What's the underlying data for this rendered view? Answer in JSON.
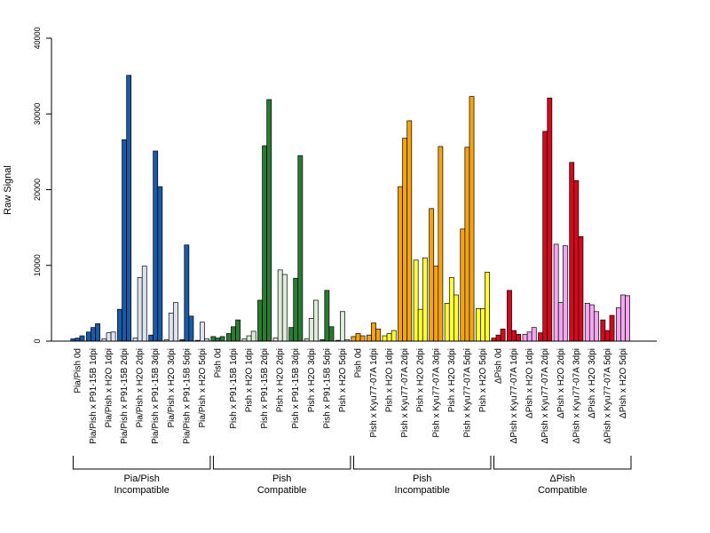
{
  "chart_data": {
    "type": "bar",
    "ylabel": "Raw Signal",
    "ylim": [
      0,
      40000
    ],
    "yticks": [
      0,
      10000,
      20000,
      30000,
      40000
    ],
    "grid": false,
    "categories": [
      "Pia/Pish 0d",
      "Pia/Pish x P91-15B 1dpi",
      "Pia/Pish x H2O 1dpi",
      "Pia/Pish x P91-15B 2dpi",
      "Pia/Pish x H2O 2dpi",
      "Pia/Pish x P91-15B 3dpi",
      "Pia/Pish x H2O 3dpi",
      "Pia/Pish x P91-15B 5dpi",
      "Pia/Pish x H2O 5dpi",
      "Pish 0d",
      "Pish x P91-15B 1dpi",
      "Pish x H2O 1dpi",
      "Pish x P91-15B 2dpi",
      "Pish x H2O 2dpi",
      "Pish x P91-15B 3dpi",
      "Pish x H2O 3dpi",
      "Pish x P91-15B 5dpi",
      "Pish x H2O 5dpi",
      "Pish 0d",
      "Pish x Kyu77-07A 1dpi",
      "Pish x H2O 1dpi",
      "Pish x Kyu77-07A 2dpi",
      "Pish x H2O 2dpi",
      "Pish x Kyu77-07A 3dpi",
      "Pish x H2O 3dpi",
      "Pish x Kyu77-07A 5dpi",
      "Pish x H2O 5dpi",
      "ΔPish 0d",
      "ΔPish x Kyu77-07A 1dpi",
      "ΔPish x H2O 1dpi",
      "ΔPish x Kyu77-07A 2dpi",
      "ΔPish x H2O 2dpi",
      "ΔPish x Kyu77-07A 3dpi",
      "ΔPish x H2O 3dpi",
      "ΔPish x Kyu77-07A 5dpi",
      "ΔPish x H2O 5dpi"
    ],
    "group_color_index": [
      0,
      0,
      1,
      0,
      1,
      0,
      1,
      0,
      1,
      0,
      0,
      1,
      0,
      1,
      0,
      1,
      0,
      1,
      0,
      0,
      1,
      0,
      1,
      0,
      1,
      0,
      1,
      0,
      0,
      1,
      0,
      1,
      0,
      1,
      0,
      1
    ],
    "values": [
      [
        300,
        400,
        700
      ],
      [
        1200,
        1800,
        2300
      ],
      [
        300,
        1100,
        1200
      ],
      [
        4200,
        26600,
        35100
      ],
      [
        400,
        8400,
        9900
      ],
      [
        800,
        25100,
        20400
      ],
      [
        200,
        3700,
        5100
      ],
      [
        200,
        12700,
        3300
      ],
      [
        100,
        2500,
        300
      ],
      [
        600,
        400,
        600
      ],
      [
        1000,
        1900,
        2800
      ],
      [
        300,
        700,
        1300
      ],
      [
        5400,
        25800,
        31900
      ],
      [
        400,
        9400,
        8800
      ],
      [
        1800,
        8300,
        24500
      ],
      [
        300,
        3000,
        5400
      ],
      [
        200,
        6700,
        1900
      ],
      [
        100,
        3900,
        200
      ],
      [
        600,
        1000,
        700
      ],
      [
        800,
        2400,
        1600
      ],
      [
        700,
        1000,
        1400
      ],
      [
        20400,
        26800,
        29100
      ],
      [
        10700,
        4200,
        11000
      ],
      [
        17500,
        9900,
        25700
      ],
      [
        5000,
        8400,
        6100
      ],
      [
        14800,
        25600,
        32300
      ],
      [
        4300,
        4300,
        9100
      ],
      [
        400,
        800,
        1600
      ],
      [
        6700,
        1400,
        900
      ],
      [
        900,
        1200,
        1800
      ],
      [
        1100,
        27700,
        32100
      ],
      [
        12800,
        5100,
        12600
      ],
      [
        23600,
        21200,
        13800
      ],
      [
        5000,
        4800,
        3900
      ],
      [
        2800,
        1400,
        3400
      ],
      [
        4400,
        6100,
        6000
      ]
    ],
    "groups": [
      {
        "line1": "Pia/Pish",
        "line2": "Incompatible",
        "first": 0,
        "last": 8,
        "colors": [
          "#1a59a6",
          "#dbe4f0"
        ]
      },
      {
        "line1": "Pish",
        "line2": "Compatible",
        "first": 9,
        "last": 17,
        "colors": [
          "#2a7a32",
          "#dcecd9"
        ]
      },
      {
        "line1": "Pish",
        "line2": "Incompatible",
        "first": 18,
        "last": 26,
        "colors": [
          "#f5a40f",
          "#ffff33"
        ]
      },
      {
        "line1": "ΔPish",
        "line2": "Compatible",
        "first": 27,
        "last": 35,
        "colors": [
          "#d4091e",
          "#f5a6f0"
        ]
      }
    ]
  }
}
